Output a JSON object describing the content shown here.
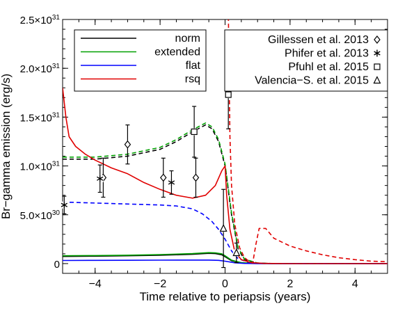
{
  "chart_data": {
    "type": "line",
    "xlabel": "Time relative to periapsis (years)",
    "ylabel": "Br−gamma emission (erg/s)",
    "xlim": [
      -5,
      5
    ],
    "ylim": [
      -1e+30,
      2.5e+31
    ],
    "x_ticks": [
      -4,
      -2,
      0,
      2,
      4
    ],
    "x_tick_labels": [
      "−4",
      "−2",
      "0",
      "2",
      "4"
    ],
    "y_ticks": [
      {
        "value": 0,
        "mantissa": "0",
        "exp": ""
      },
      {
        "value": 5e+30,
        "mantissa": "5.0×10",
        "exp": "30"
      },
      {
        "value": 1e+31,
        "mantissa": "1.0×10",
        "exp": "31"
      },
      {
        "value": 1.5e+31,
        "mantissa": "1.5×10",
        "exp": "31"
      },
      {
        "value": 2e+31,
        "mantissa": "2.0×10",
        "exp": "31"
      },
      {
        "value": 2.5e+31,
        "mantissa": "2.5×10",
        "exp": "31"
      }
    ],
    "legend_models": {
      "position": "top-left",
      "entries": [
        {
          "name": "norm",
          "color": "#000000"
        },
        {
          "name": "extended",
          "color": "#00a000"
        },
        {
          "name": "flat",
          "color": "#0000ff"
        },
        {
          "name": "rsq",
          "color": "#e00000"
        }
      ]
    },
    "legend_data": {
      "position": "top-right",
      "entries": [
        {
          "name": "Gillessen et al. 2013",
          "marker": "diamond"
        },
        {
          "name": "Phifer et al. 2013",
          "marker": "asterisk"
        },
        {
          "name": "Pfuhl et al. 2015",
          "marker": "square"
        },
        {
          "name": "Valencia−S. et al. 2015",
          "marker": "triangle"
        }
      ]
    },
    "series": [
      {
        "name": "norm",
        "style": "solid",
        "color": "#000000",
        "points": [
          [
            -5,
            7.3e+29
          ],
          [
            -4,
            7.6e+29
          ],
          [
            -3,
            8e+29
          ],
          [
            -2,
            8.5e+29
          ],
          [
            -1,
            9.5e+29
          ],
          [
            -0.5,
            1.05e+30
          ],
          [
            -0.3,
            1.02e+30
          ],
          [
            -0.1,
            9e+29
          ],
          [
            0,
            7e+29
          ],
          [
            0.2,
            3e+29
          ],
          [
            0.5,
            8e+28
          ],
          [
            0.8,
            2e+28
          ],
          [
            1.5,
            0
          ],
          [
            5,
            0
          ]
        ]
      },
      {
        "name": "norm",
        "style": "dashed",
        "color": "#000000",
        "points": [
          [
            -5,
            1.07e+31
          ],
          [
            -4,
            1.07e+31
          ],
          [
            -3,
            1.1e+31
          ],
          [
            -2,
            1.17e+31
          ],
          [
            -1.5,
            1.25e+31
          ],
          [
            -1,
            1.35e+31
          ],
          [
            -0.6,
            1.42e+31
          ],
          [
            -0.4,
            1.38e+31
          ],
          [
            -0.2,
            1.25e+31
          ],
          [
            0,
            1e+31
          ],
          [
            0.2,
            5e+30
          ],
          [
            0.4,
            1.5e+30
          ],
          [
            0.6,
            4e+29
          ],
          [
            1.0,
            5e+28
          ],
          [
            1.5,
            0
          ],
          [
            5,
            0
          ]
        ]
      },
      {
        "name": "extended",
        "style": "solid",
        "color": "#00a000",
        "points": [
          [
            -5,
            8e+29
          ],
          [
            -4,
            8.2e+29
          ],
          [
            -3,
            8.6e+29
          ],
          [
            -2,
            9.2e+29
          ],
          [
            -1,
            1.02e+30
          ],
          [
            -0.5,
            1.12e+30
          ],
          [
            -0.3,
            1.1e+30
          ],
          [
            -0.1,
            1e+30
          ],
          [
            0,
            8e+29
          ],
          [
            0.2,
            3.5e+29
          ],
          [
            0.5,
            1e+29
          ],
          [
            0.8,
            3e+28
          ],
          [
            1.5,
            0
          ],
          [
            5,
            0
          ]
        ]
      },
      {
        "name": "extended",
        "style": "dashed",
        "color": "#00a000",
        "points": [
          [
            -5,
            1.09e+31
          ],
          [
            -4,
            1.09e+31
          ],
          [
            -3,
            1.12e+31
          ],
          [
            -2,
            1.19e+31
          ],
          [
            -1.5,
            1.27e+31
          ],
          [
            -1,
            1.37e+31
          ],
          [
            -0.6,
            1.44e+31
          ],
          [
            -0.4,
            1.4e+31
          ],
          [
            -0.2,
            1.27e+31
          ],
          [
            0,
            1.02e+31
          ],
          [
            0.2,
            5.2e+30
          ],
          [
            0.4,
            1.6e+30
          ],
          [
            0.6,
            4.5e+29
          ],
          [
            1.0,
            6e+28
          ],
          [
            1.5,
            0
          ],
          [
            5,
            0
          ]
        ]
      },
      {
        "name": "flat",
        "style": "solid",
        "color": "#0000ff",
        "points": [
          [
            -5,
            3.2e+29
          ],
          [
            -4,
            3.3e+29
          ],
          [
            -3,
            3.4e+29
          ],
          [
            -2,
            3.5e+29
          ],
          [
            -1,
            3.6e+29
          ],
          [
            -0.5,
            3.6e+29
          ],
          [
            -0.2,
            3.3e+29
          ],
          [
            0,
            2.5e+29
          ],
          [
            0.3,
            8e+28
          ],
          [
            0.6,
            2e+28
          ],
          [
            1.0,
            0
          ],
          [
            5,
            0
          ]
        ]
      },
      {
        "name": "flat",
        "style": "dashed",
        "color": "#0000ff",
        "points": [
          [
            -5,
            6.3e+30
          ],
          [
            -4,
            6.2e+30
          ],
          [
            -3,
            6.1e+30
          ],
          [
            -2,
            6e+30
          ],
          [
            -1.5,
            5.9e+30
          ],
          [
            -1,
            5.6e+30
          ],
          [
            -0.7,
            5.1e+30
          ],
          [
            -0.4,
            4.3e+30
          ],
          [
            -0.2,
            3.5e+30
          ],
          [
            0,
            2.5e+30
          ],
          [
            0.2,
            1.3e+30
          ],
          [
            0.4,
            5e+29
          ],
          [
            0.7,
            1.5e+29
          ],
          [
            1.0,
            3e+28
          ],
          [
            1.5,
            0
          ],
          [
            5,
            0
          ]
        ]
      },
      {
        "name": "rsq",
        "style": "solid",
        "color": "#e00000",
        "points": [
          [
            -5,
            1.8e+31
          ],
          [
            -4.9,
            1.5e+31
          ],
          [
            -4.8,
            1.3e+31
          ],
          [
            -4.6,
            1.2e+31
          ],
          [
            -4.3,
            1.12e+31
          ],
          [
            -4,
            1.06e+31
          ],
          [
            -3.5,
            9.8e+30
          ],
          [
            -3,
            9.2e+30
          ],
          [
            -2.5,
            8.3e+30
          ],
          [
            -2,
            7.6e+30
          ],
          [
            -1.5,
            7e+30
          ],
          [
            -1,
            6.7e+30
          ],
          [
            -0.6,
            7e+30
          ],
          [
            -0.3,
            8e+30
          ],
          [
            -0.1,
            9.5e+30
          ],
          [
            0,
            1e+31
          ],
          [
            0.05,
            7e+30
          ],
          [
            0.15,
            3.5e+30
          ],
          [
            0.3,
            1.2e+30
          ],
          [
            0.5,
            4e+29
          ],
          [
            0.8,
            1e+29
          ],
          [
            1.2,
            2e+28
          ],
          [
            2,
            0
          ],
          [
            5,
            0
          ]
        ]
      },
      {
        "name": "rsq",
        "style": "dashed",
        "color": "#e00000",
        "points": [
          [
            0.1,
            2.6e+31
          ],
          [
            0.12,
            2e+31
          ],
          [
            0.15,
            1.3e+31
          ],
          [
            0.2,
            8e+30
          ],
          [
            0.3,
            4e+30
          ],
          [
            0.45,
            1.6e+30
          ],
          [
            0.6,
            6e+29
          ],
          [
            0.75,
            2e+29
          ],
          [
            0.85,
            5e+28
          ],
          [
            0.95,
            2e+30
          ],
          [
            1.05,
            3.6e+30
          ],
          [
            1.25,
            3.6e+30
          ],
          [
            1.5,
            2.6e+30
          ],
          [
            2,
            1.8e+30
          ],
          [
            2.5,
            1.3e+30
          ],
          [
            3,
            9e+29
          ],
          [
            3.5,
            6e+29
          ],
          [
            4,
            4e+29
          ],
          [
            4.5,
            2.5e+29
          ],
          [
            5,
            2e+29
          ]
        ]
      }
    ],
    "observations": [
      {
        "source": "Gillessen et al. 2013",
        "marker": "diamond",
        "points": [
          {
            "x": -3.75,
            "y": 8.8e+30,
            "err": 2e+30
          },
          {
            "x": -3.0,
            "y": 1.22e+31,
            "err": 2e+30
          },
          {
            "x": -1.9,
            "y": 8.8e+30,
            "err": 2e+30
          },
          {
            "x": -0.9,
            "y": 8.8e+30,
            "err": 2e+30
          }
        ]
      },
      {
        "source": "Phifer et al. 2013",
        "marker": "asterisk",
        "points": [
          {
            "x": -4.95,
            "y": 6e+30,
            "err": 9e+29
          },
          {
            "x": -3.85,
            "y": 8.7e+30,
            "err": 1.4e+30
          },
          {
            "x": -1.65,
            "y": 8.3e+30,
            "err": 1.2e+30
          }
        ]
      },
      {
        "source": "Pfuhl et al. 2015",
        "marker": "square",
        "points": [
          {
            "x": -0.95,
            "y": 1.35e+31,
            "err": 2.6e+30
          },
          {
            "x": 0.1,
            "y": 1.73e+31,
            "err": 3.5e+30
          }
        ]
      },
      {
        "source": "Valencia−S. et al. 2015",
        "marker": "triangle",
        "points": [
          {
            "x": -0.05,
            "y": 3.6e+30,
            "err": 4e+30
          },
          {
            "x": 0.35,
            "y": 1.1e+30,
            "err": 1e+30
          }
        ]
      }
    ]
  }
}
